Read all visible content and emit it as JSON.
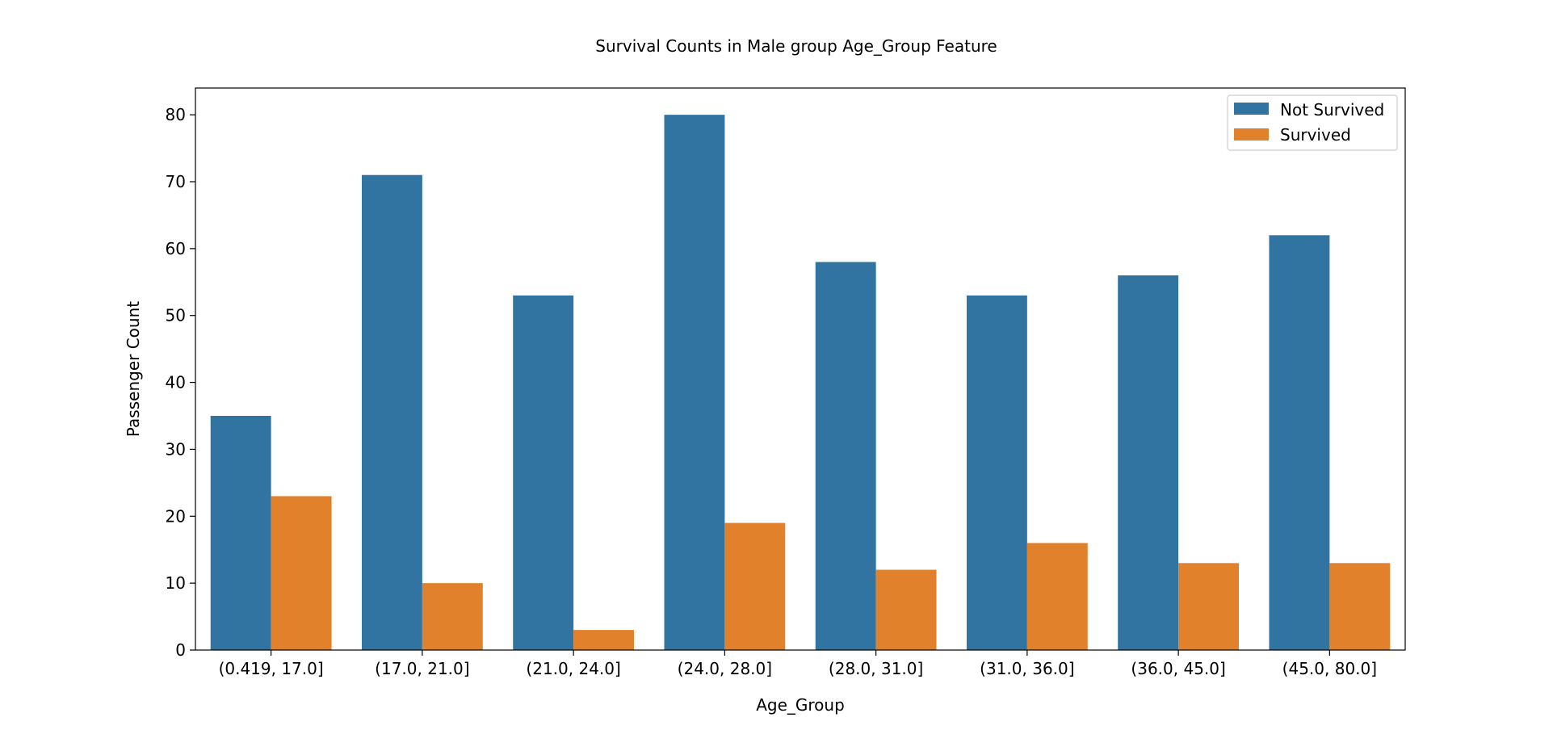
{
  "chart_data": {
    "type": "bar",
    "title": "Survival Counts in Male group Age_Group Feature",
    "xlabel": "Age_Group",
    "ylabel": "Passenger Count",
    "categories": [
      "(0.419, 17.0]",
      "(17.0, 21.0]",
      "(21.0, 24.0]",
      "(24.0, 28.0]",
      "(28.0, 31.0]",
      "(31.0, 36.0]",
      "(36.0, 45.0]",
      "(45.0, 80.0]"
    ],
    "series": [
      {
        "name": "Not Survived",
        "color": "#3274a1",
        "values": [
          35,
          71,
          53,
          80,
          58,
          53,
          56,
          62
        ]
      },
      {
        "name": "Survived",
        "color": "#e1812c",
        "values": [
          23,
          10,
          3,
          19,
          12,
          16,
          13,
          13
        ]
      }
    ],
    "ylim": [
      0,
      84
    ],
    "yticks": [
      0,
      10,
      20,
      30,
      40,
      50,
      60,
      70,
      80
    ],
    "grid": false,
    "legend_position": "top-right"
  }
}
